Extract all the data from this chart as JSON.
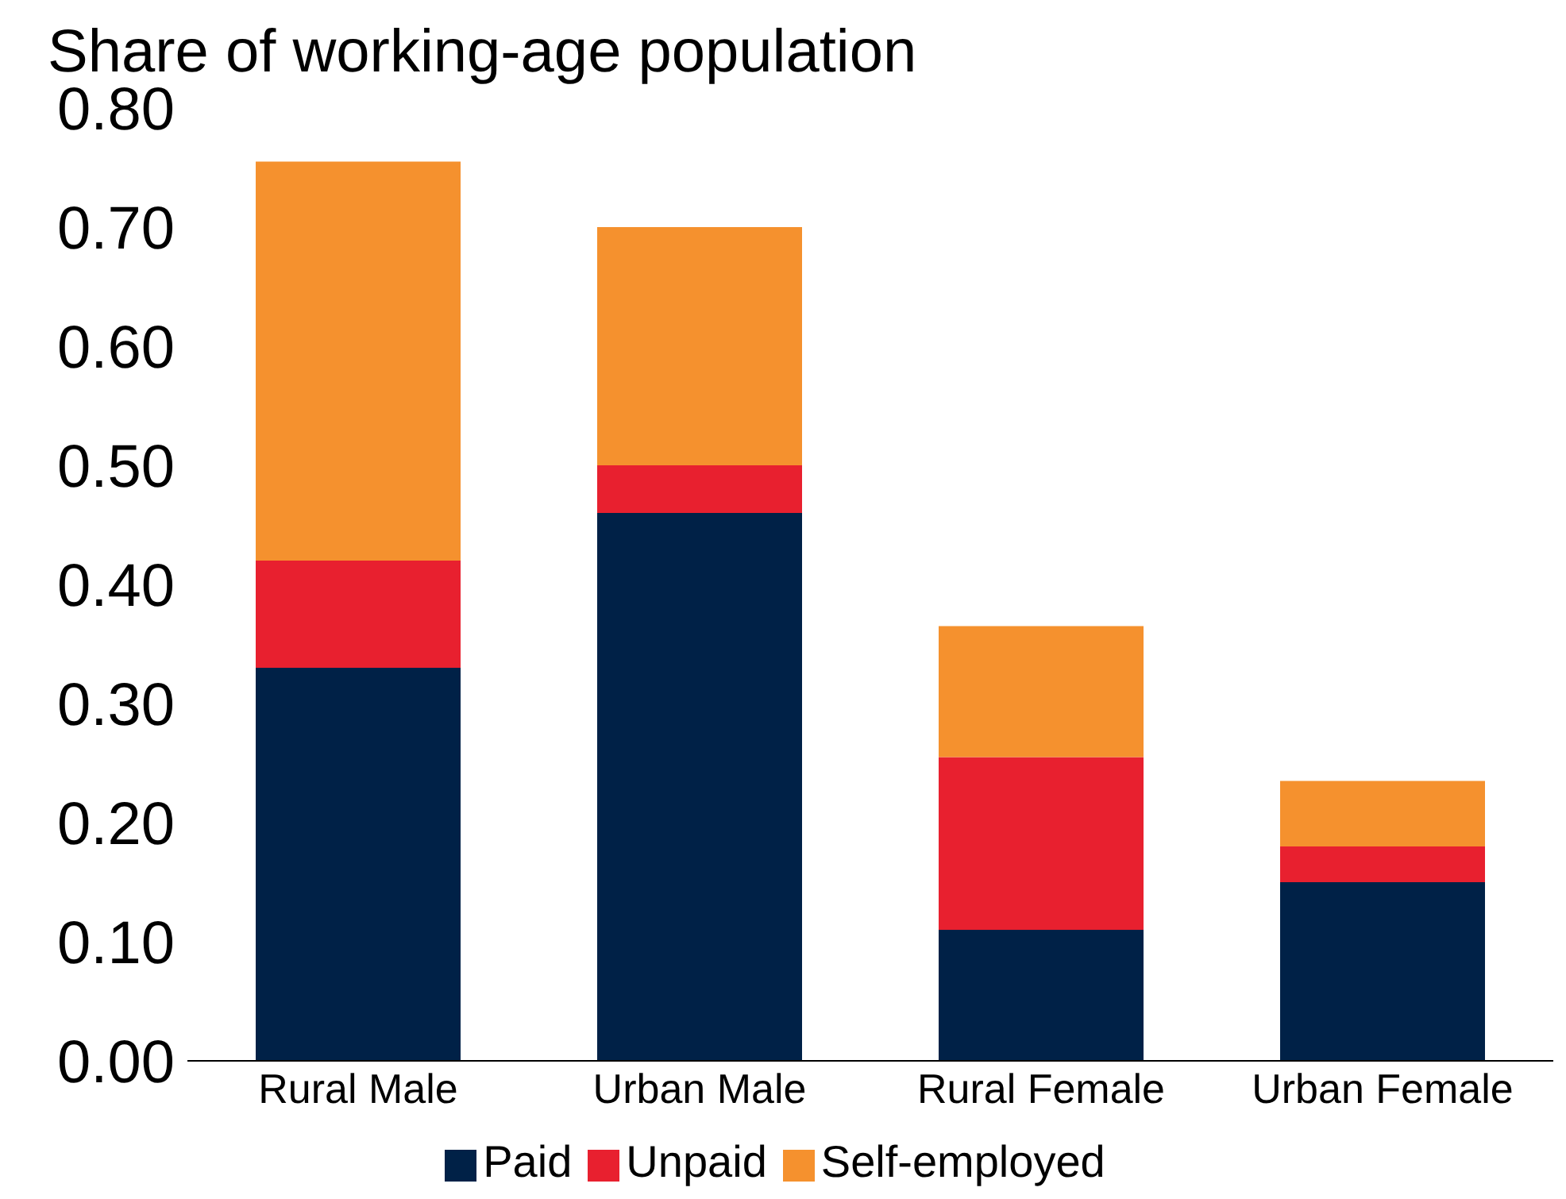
{
  "chart_data": {
    "type": "bar",
    "stacked": true,
    "ylabel": "Share of working-age population",
    "categories": [
      "Rural Male",
      "Urban Male",
      "Rural Female",
      "Urban Female"
    ],
    "series": [
      {
        "name": "Paid",
        "color": "#002147",
        "values": [
          0.33,
          0.46,
          0.11,
          0.15
        ]
      },
      {
        "name": "Unpaid",
        "color": "#e8202f",
        "values": [
          0.09,
          0.04,
          0.145,
          0.03
        ]
      },
      {
        "name": "Self-employed",
        "color": "#f5912e",
        "values": [
          0.335,
          0.2,
          0.11,
          0.055
        ]
      }
    ],
    "ylim": [
      0,
      0.8
    ],
    "yticks": [
      {
        "value": 0,
        "label": "0.00"
      },
      {
        "value": 0.1,
        "label": "0.10"
      },
      {
        "value": 0.2,
        "label": "0.20"
      },
      {
        "value": 0.3,
        "label": "0.30"
      },
      {
        "value": 0.4,
        "label": "0.40"
      },
      {
        "value": 0.5,
        "label": "0.50"
      },
      {
        "value": 0.6,
        "label": "0.60"
      },
      {
        "value": 0.7,
        "label": "0.70"
      },
      {
        "value": 0.8,
        "label": "0.80"
      }
    ],
    "grid": false,
    "legend": "bottom"
  }
}
